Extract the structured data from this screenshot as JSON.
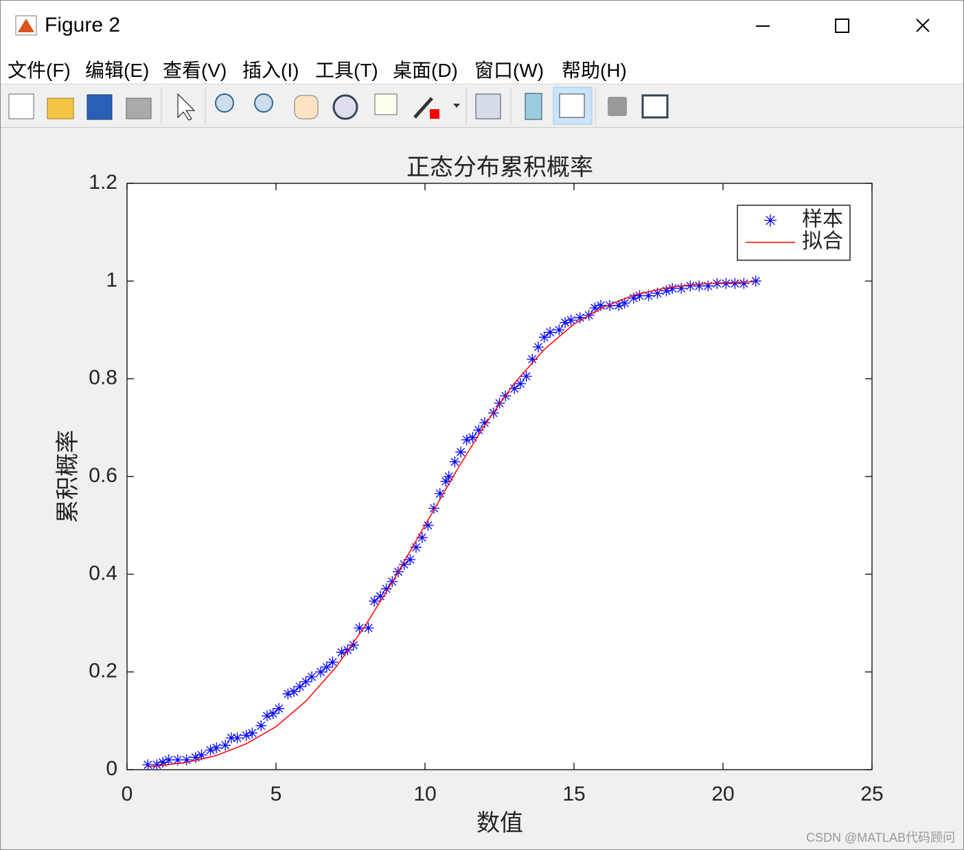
{
  "window": {
    "title": "Figure 2"
  },
  "menu": [
    "文件(F)",
    "编辑(E)",
    "查看(V)",
    "插入(I)",
    "工具(T)",
    "桌面(D)",
    "窗口(W)",
    "帮助(H)"
  ],
  "watermark": "CSDN @MATLAB代码顾问",
  "chart_data": {
    "type": "line",
    "title": "正态分布累积概率",
    "xlabel": "数值",
    "ylabel": "累积概率",
    "xlim": [
      0,
      25
    ],
    "xticks": [
      0,
      5,
      10,
      15,
      20,
      25
    ],
    "ylim": [
      0,
      1.2
    ],
    "yticks": [
      0,
      0.2,
      0.4,
      0.6,
      0.8,
      1,
      1.2
    ],
    "grid": false,
    "legend": "northeast",
    "series": [
      {
        "name": "样本",
        "color": "#0000ff",
        "marker": "asterisk",
        "x": [
          0.7,
          1.0,
          1.2,
          1.4,
          1.7,
          2.0,
          2.3,
          2.5,
          2.8,
          3.0,
          3.3,
          3.5,
          3.7,
          4.0,
          4.2,
          4.5,
          4.7,
          4.9,
          5.1,
          5.4,
          5.6,
          5.8,
          6.0,
          6.2,
          6.5,
          6.7,
          6.9,
          7.2,
          7.4,
          7.6,
          7.8,
          8.1,
          8.3,
          8.5,
          8.7,
          8.9,
          9.1,
          9.3,
          9.5,
          9.7,
          9.9,
          10.1,
          10.3,
          10.5,
          10.7,
          10.8,
          11.0,
          11.2,
          11.4,
          11.6,
          11.8,
          12.0,
          12.3,
          12.5,
          12.7,
          13.0,
          13.2,
          13.4,
          13.6,
          13.8,
          14.0,
          14.2,
          14.5,
          14.7,
          14.9,
          15.2,
          15.5,
          15.7,
          15.9,
          16.2,
          16.5,
          16.7,
          17.0,
          17.2,
          17.5,
          17.8,
          18.1,
          18.3,
          18.6,
          18.9,
          19.2,
          19.5,
          19.8,
          20.1,
          20.4,
          20.7,
          21.1
        ],
        "values": [
          0.01,
          0.01,
          0.015,
          0.02,
          0.02,
          0.02,
          0.025,
          0.03,
          0.04,
          0.045,
          0.05,
          0.065,
          0.065,
          0.07,
          0.075,
          0.09,
          0.11,
          0.115,
          0.125,
          0.155,
          0.16,
          0.17,
          0.18,
          0.19,
          0.2,
          0.21,
          0.22,
          0.24,
          0.245,
          0.255,
          0.29,
          0.29,
          0.345,
          0.355,
          0.37,
          0.385,
          0.405,
          0.42,
          0.43,
          0.455,
          0.475,
          0.5,
          0.535,
          0.565,
          0.59,
          0.6,
          0.63,
          0.65,
          0.675,
          0.68,
          0.695,
          0.71,
          0.73,
          0.75,
          0.765,
          0.78,
          0.79,
          0.805,
          0.84,
          0.865,
          0.885,
          0.895,
          0.9,
          0.915,
          0.92,
          0.925,
          0.93,
          0.945,
          0.95,
          0.95,
          0.95,
          0.955,
          0.965,
          0.97,
          0.97,
          0.975,
          0.98,
          0.985,
          0.985,
          0.99,
          0.99,
          0.99,
          0.995,
          0.995,
          0.995,
          0.995,
          1.0
        ]
      },
      {
        "name": "拟合",
        "color": "#ff0000",
        "linestyle": "solid",
        "x": [
          0.7,
          1,
          2,
          3,
          4,
          5,
          6,
          7,
          8,
          9,
          10,
          11,
          12,
          13,
          14,
          15,
          16,
          17,
          18,
          19,
          20,
          21,
          21.1
        ],
        "values": [
          0.006,
          0.0075,
          0.015,
          0.029,
          0.053,
          0.088,
          0.14,
          0.209,
          0.295,
          0.394,
          0.5,
          0.606,
          0.705,
          0.791,
          0.86,
          0.912,
          0.947,
          0.971,
          0.985,
          0.993,
          0.9965,
          0.9985,
          0.9986
        ]
      }
    ]
  }
}
